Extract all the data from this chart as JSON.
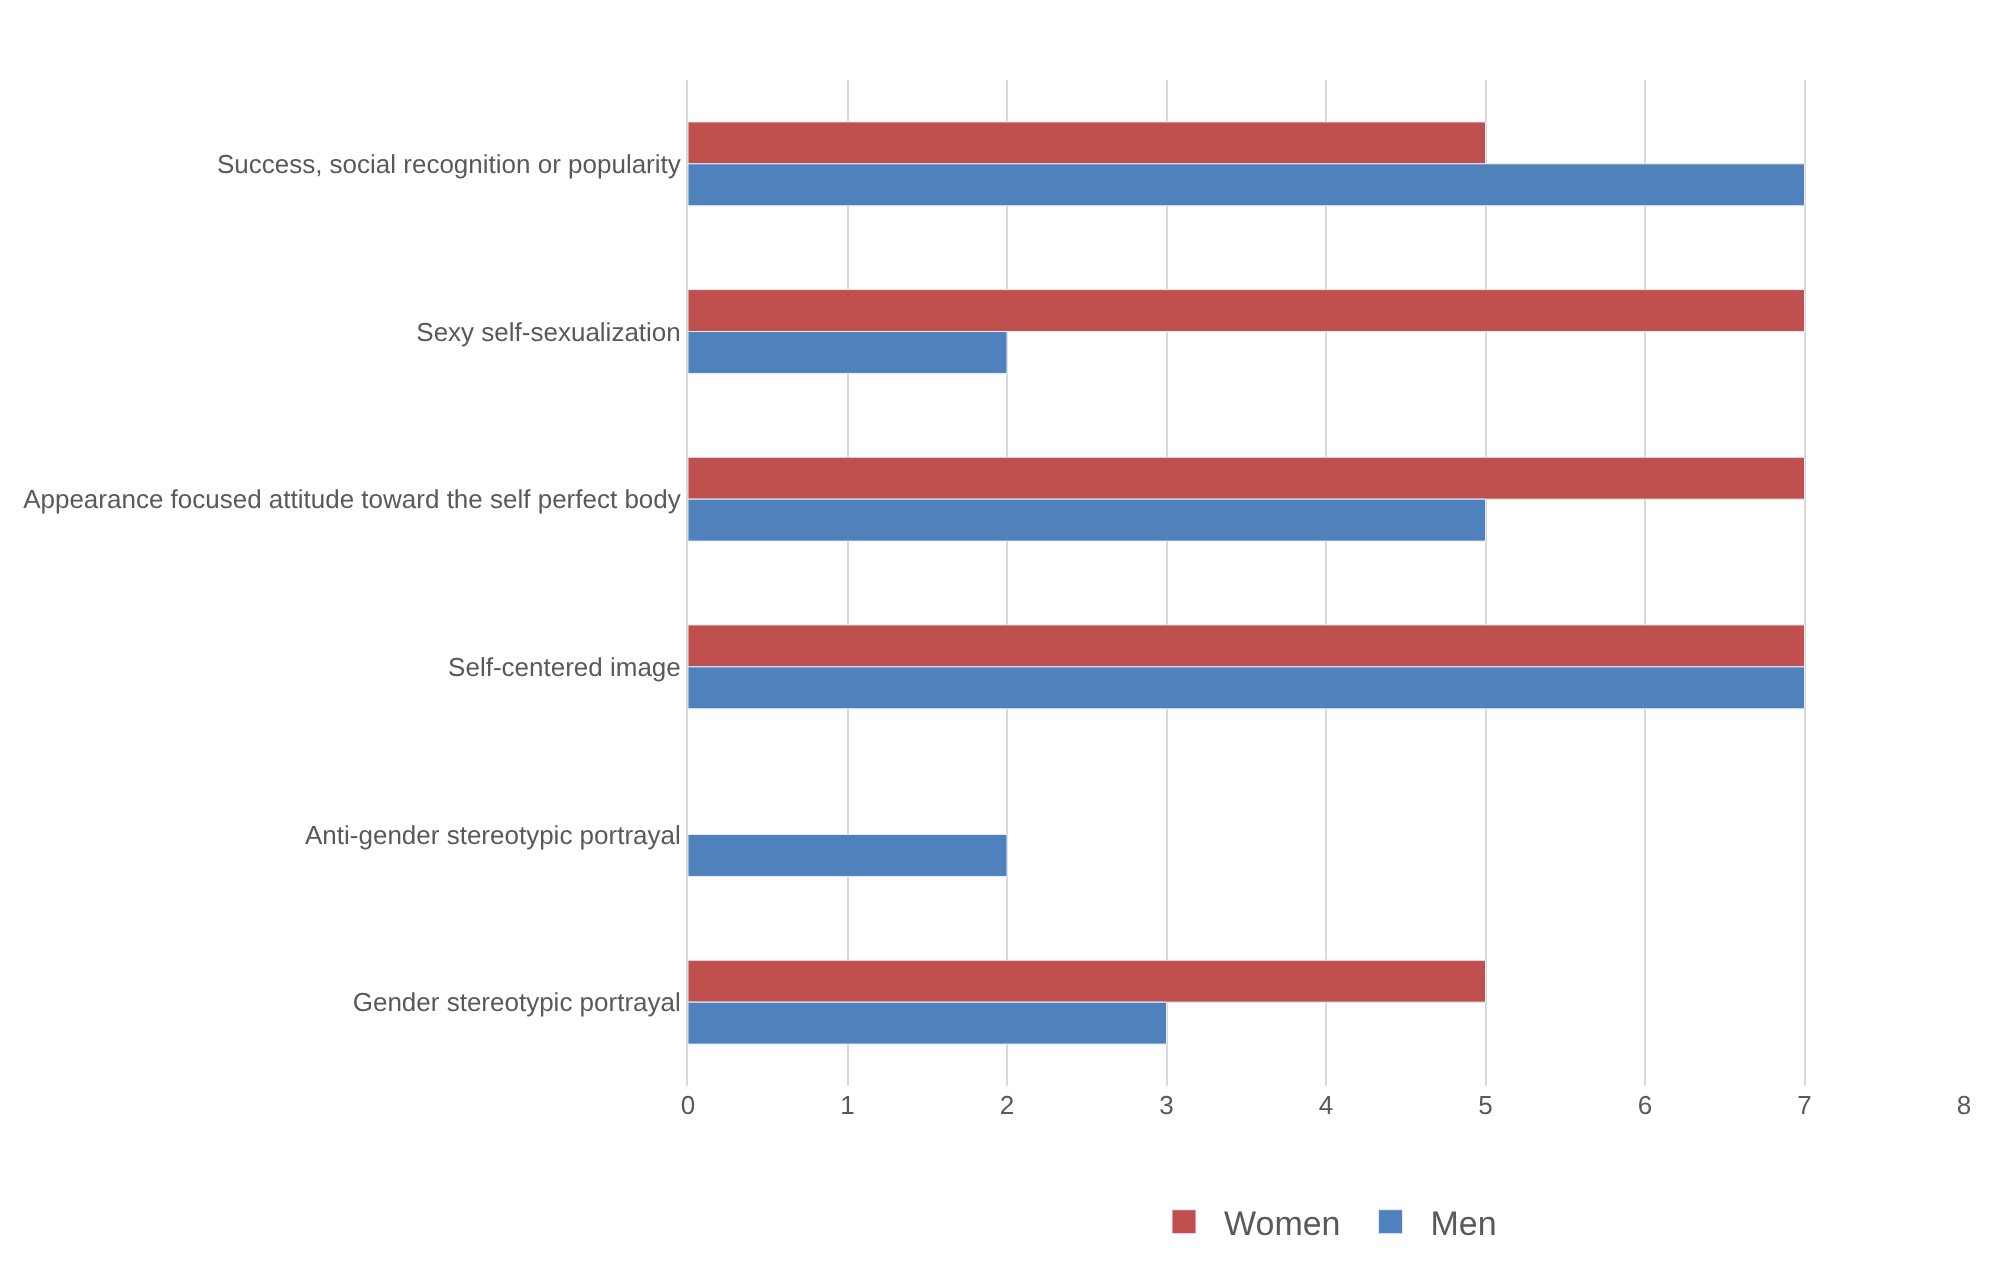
{
  "chart_data": {
    "type": "bar",
    "orientation": "horizontal",
    "categories": [
      "Success, social recognition or popularity",
      "Sexy self-sexualization",
      "Appearance focused attitude toward the self perfect body",
      "Self-centered image",
      "Anti-gender stereotypic portrayal",
      "Gender stereotypic portrayal"
    ],
    "series": [
      {
        "name": "Women",
        "color": "#c0504d",
        "values": [
          5,
          7,
          7,
          7,
          null,
          5
        ]
      },
      {
        "name": "Men",
        "color": "#4f81bd",
        "values": [
          7,
          2,
          5,
          7,
          2,
          3
        ]
      }
    ],
    "xlim": [
      0,
      8
    ],
    "xticks": [
      0,
      1,
      2,
      3,
      4,
      5,
      6,
      7,
      8
    ],
    "grid": "x",
    "legend": "bottom"
  }
}
